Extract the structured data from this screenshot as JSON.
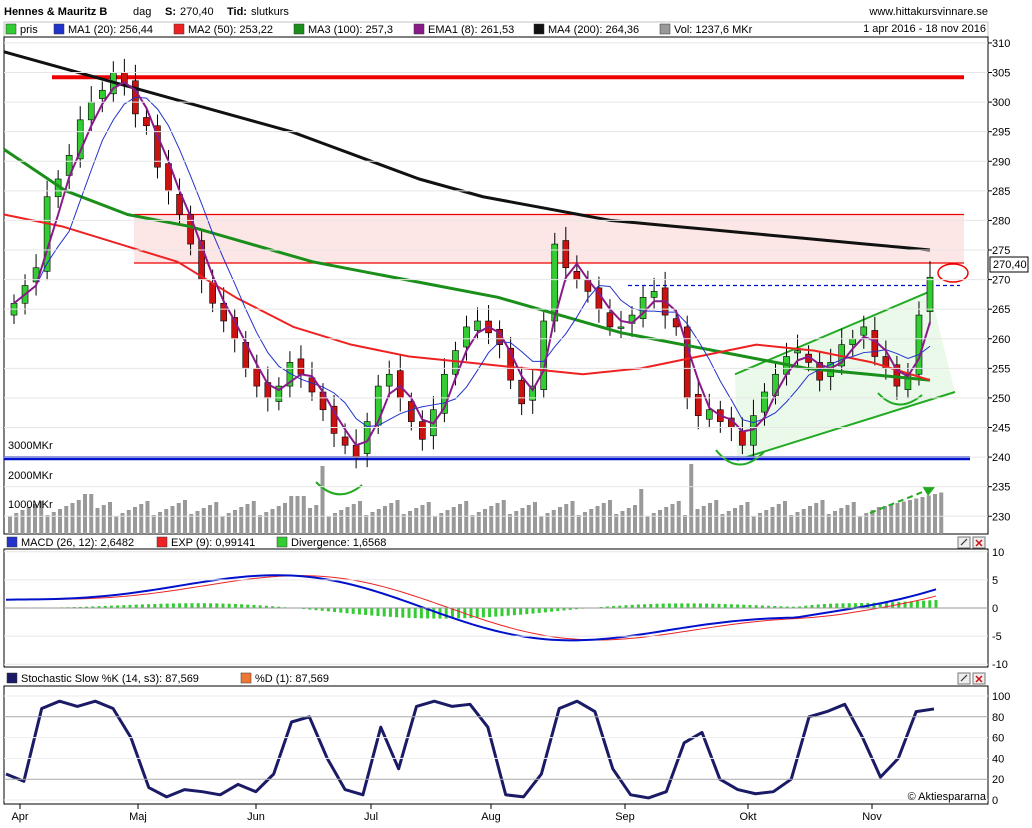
{
  "header": {
    "stock": "Hennes & Mauritz B",
    "period": "dag",
    "last_label": "S:",
    "last_value": "270,40",
    "type_label": "Tid:",
    "type_value": "slutkurs",
    "site": "www.hittakursvinnare.se",
    "date_range": "1 apr 2016 - 18 nov 2016"
  },
  "legend": [
    {
      "label": "pris",
      "color": "#33cc33"
    },
    {
      "label": "MA1 (20): 256,44",
      "color": "#2233cc"
    },
    {
      "label": "MA2 (50): 253,22",
      "color": "#ee2222"
    },
    {
      "label": "MA3 (100): 257,3",
      "color": "#1a8f1a"
    },
    {
      "label": "EMA1 (8): 261,53",
      "color": "#8a1a8a"
    },
    {
      "label": "MA4 (200): 264,36",
      "color": "#111111"
    },
    {
      "label": "Vol: 1237,6 MKr",
      "color": "#999999"
    }
  ],
  "price_tag": "270,40",
  "volume_labels": [
    "3000MKr",
    "2000MKr",
    "1000MKr"
  ],
  "macd_legend": [
    {
      "label": "MACD (26, 12): 2,6482",
      "color": "#2233cc"
    },
    {
      "label": "EXP (9): 0,99141",
      "color": "#ee2222"
    },
    {
      "label": "Divergence: 1,6568",
      "color": "#33cc33"
    }
  ],
  "stoch_legend": [
    {
      "label": "Stochastic Slow %K (14, s3): 87,569",
      "color": "#1a1a66"
    },
    {
      "label": "%D (1): 87,569",
      "color": "#ee7733"
    }
  ],
  "copyright": "© Aktiespararna",
  "colors": {
    "up": "#33cc33",
    "down": "#cc1111",
    "ma20": "#2233cc",
    "ma50": "#ee2222",
    "ma100": "#1a8f1a",
    "ema8": "#8a1a8a",
    "ma200": "#111111",
    "support": "#0011cc",
    "resistance": "#ee0000",
    "volume": "#999999",
    "channel": "#22aa22"
  },
  "chart_data": [
    {
      "type": "candlestick",
      "title": "Hennes & Mauritz B",
      "x_labels": [
        "Apr",
        "Maj",
        "Jun",
        "Jul",
        "Aug",
        "Sep",
        "Okt",
        "Nov"
      ],
      "y_ticks": [
        230,
        235,
        240,
        245,
        250,
        255,
        260,
        265,
        270,
        275,
        280,
        285,
        290,
        295,
        300,
        305,
        310
      ],
      "ylim": [
        227,
        311
      ],
      "close": [
        266,
        269,
        272,
        284,
        287,
        291,
        297,
        300,
        302,
        305,
        303,
        298,
        296,
        289,
        285,
        281,
        276,
        270,
        266,
        263,
        260,
        255,
        252,
        250,
        252,
        256,
        254,
        251,
        248,
        244,
        242,
        240,
        246,
        252,
        254,
        250,
        246,
        243,
        248,
        254,
        258,
        262,
        263,
        261,
        259,
        253,
        249,
        252,
        263,
        276,
        272,
        270,
        268,
        265,
        262,
        262,
        264,
        267,
        268,
        264,
        262,
        250,
        247,
        248,
        246,
        245,
        242,
        247,
        251,
        254,
        257,
        258,
        256,
        253,
        256,
        259,
        260,
        262,
        257,
        255,
        252,
        254,
        264,
        270.4
      ],
      "ma200": [
        308.5,
        307,
        305.5,
        304,
        302.5,
        301,
        299.5,
        298,
        296.5,
        295,
        293,
        291,
        289,
        287,
        285.5,
        284,
        283,
        282,
        281,
        280,
        279.5,
        279,
        278.5,
        278,
        277.5,
        277,
        276.5,
        276,
        275.5,
        275
      ],
      "ma100": [
        292,
        285,
        281,
        279,
        276,
        273,
        271,
        269,
        267,
        264,
        261,
        259,
        257,
        255,
        254,
        253
      ],
      "ma50": [
        281,
        279,
        276,
        273,
        267,
        262,
        259,
        257,
        256,
        255,
        254,
        255,
        257,
        259,
        258,
        256,
        253
      ]
    },
    {
      "type": "bar",
      "title": "Volume",
      "unit": "MKr",
      "last": 1237.6
    },
    {
      "type": "line",
      "title": "MACD (26, 12)",
      "y_ticks": [
        -10,
        -5,
        0,
        5,
        10
      ],
      "series": [
        {
          "name": "MACD (26, 12)",
          "last": 2.6482
        },
        {
          "name": "EXP (9)",
          "last": 0.99141
        },
        {
          "name": "Divergence",
          "last": 1.6568
        }
      ]
    },
    {
      "type": "line",
      "title": "Stochastic Slow %K (14, s3)",
      "y_ticks": [
        0,
        20,
        40,
        60,
        80,
        100
      ],
      "values": [
        25,
        18,
        88,
        95,
        90,
        95,
        88,
        60,
        12,
        3,
        10,
        8,
        5,
        15,
        8,
        25,
        75,
        80,
        40,
        10,
        5,
        70,
        30,
        90,
        95,
        90,
        92,
        70,
        5,
        3,
        25,
        88,
        95,
        85,
        30,
        5,
        2,
        8,
        55,
        65,
        20,
        10,
        6,
        8,
        20,
        80,
        85,
        92,
        60,
        22,
        40,
        85,
        87.569
      ]
    }
  ]
}
